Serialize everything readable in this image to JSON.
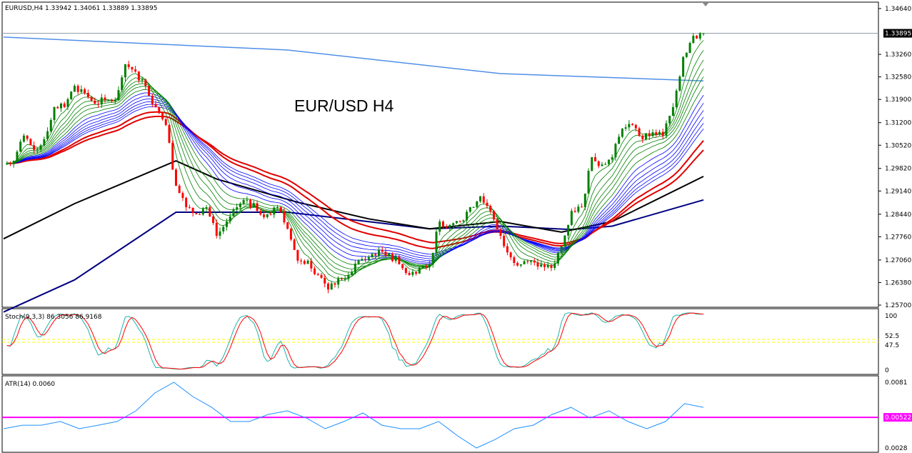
{
  "header": {
    "symbol_info": "EURUSD,H4  1.33942 1.34061 1.33889 1.33895"
  },
  "overlay_title": "EUR/USD H4",
  "colors": {
    "bull": "#008000",
    "bear": "#ff0000",
    "green_ma": "#008000",
    "blue_ma": "#0000ff",
    "red_ma": "#e00000",
    "black_ma": "#000000",
    "navy_ma": "#000080",
    "long_ma": "#4f8fe8",
    "stoch_main": "#20b2aa",
    "stoch_signal": "#ff0000",
    "level": "#ffff00",
    "atr": "#1e90ff",
    "atr_level": "#ff00ff"
  },
  "price_axis": {
    "ticks": [
      "1.34640",
      "1.33260",
      "1.32580",
      "1.31900",
      "1.31200",
      "1.30520",
      "1.29820",
      "1.29140",
      "1.28440",
      "1.27760",
      "1.27060",
      "1.26380",
      "1.25700"
    ],
    "current_price": "1.33895"
  },
  "stoch": {
    "label": "Stoch(9,3,3) 86.3056 86.9168",
    "ticks": [
      "100",
      "52.5",
      "47.5",
      "0"
    ],
    "levels": [
      52.5,
      47.5
    ]
  },
  "atr": {
    "label": "ATR(14) 0.0060",
    "ticks": [
      "0.0081",
      "0.0028"
    ],
    "level_label": "0.00522",
    "level": 0.00522,
    "values": [
      0.00432,
      0.0046,
      0.0046,
      0.00489,
      0.00432,
      0.0046,
      0.00489,
      0.00573,
      0.00714,
      0.00799,
      0.00686,
      0.00601,
      0.00489,
      0.00489,
      0.00545,
      0.00573,
      0.00517,
      0.00432,
      0.00489,
      0.00556,
      0.0046,
      0.00432,
      0.00432,
      0.00489,
      0.00376,
      0.0028,
      0.00348,
      0.00432,
      0.0046,
      0.00545,
      0.00601,
      0.00517,
      0.00573,
      0.00489,
      0.00432,
      0.00489,
      0.0063,
      0.00601
    ]
  },
  "chart_data": {
    "type": "candlestick",
    "ylim": [
      1.257,
      1.3464
    ],
    "closes": [
      1.2994,
      1.3005,
      1.3081,
      1.3038,
      1.307,
      1.3167,
      1.3167,
      1.3231,
      1.321,
      1.3177,
      1.3188,
      1.3188,
      1.3296,
      1.3274,
      1.3231,
      1.3167,
      1.3113,
      1.293,
      1.2865,
      1.2844,
      1.2865,
      1.2779,
      1.2822,
      1.2865,
      1.2887,
      1.2854,
      1.2844,
      1.2865,
      1.28,
      1.2704,
      1.2704,
      1.2661,
      1.2617,
      1.265,
      1.2661,
      1.2704,
      1.2714,
      1.2736,
      1.2725,
      1.2693,
      1.2661,
      1.2682,
      1.2693,
      1.2822,
      1.2811,
      1.2822,
      1.2865,
      1.2898,
      1.2854,
      1.2779,
      1.2714,
      1.2693,
      1.2704,
      1.2693,
      1.2682,
      1.2747,
      1.2854,
      1.2865,
      1.3016,
      1.2994,
      1.3016,
      1.3102,
      1.3113,
      1.307,
      1.3091,
      1.3081,
      1.3167,
      1.3318,
      1.3382,
      1.33895
    ],
    "black_ma": [
      [
        0,
        1.277
      ],
      [
        7,
        1.2876
      ],
      [
        17,
        1.3005
      ],
      [
        21,
        1.295
      ],
      [
        29,
        1.288
      ],
      [
        36,
        1.283
      ],
      [
        42,
        1.28
      ],
      [
        49,
        1.2822
      ],
      [
        55,
        1.279
      ],
      [
        60,
        1.2822
      ],
      [
        69,
        1.2958
      ]
    ],
    "navy_ma": [
      [
        0,
        1.2549
      ],
      [
        7,
        1.2646
      ],
      [
        17,
        1.285
      ],
      [
        28,
        1.285
      ],
      [
        42,
        1.28
      ],
      [
        49,
        1.2808
      ],
      [
        56,
        1.2798
      ],
      [
        60,
        1.2808
      ],
      [
        69,
        1.2887
      ]
    ],
    "long_ma": [
      [
        0,
        1.3378
      ],
      [
        28,
        1.3339
      ],
      [
        49,
        1.3268
      ],
      [
        69,
        1.3246
      ]
    ]
  }
}
